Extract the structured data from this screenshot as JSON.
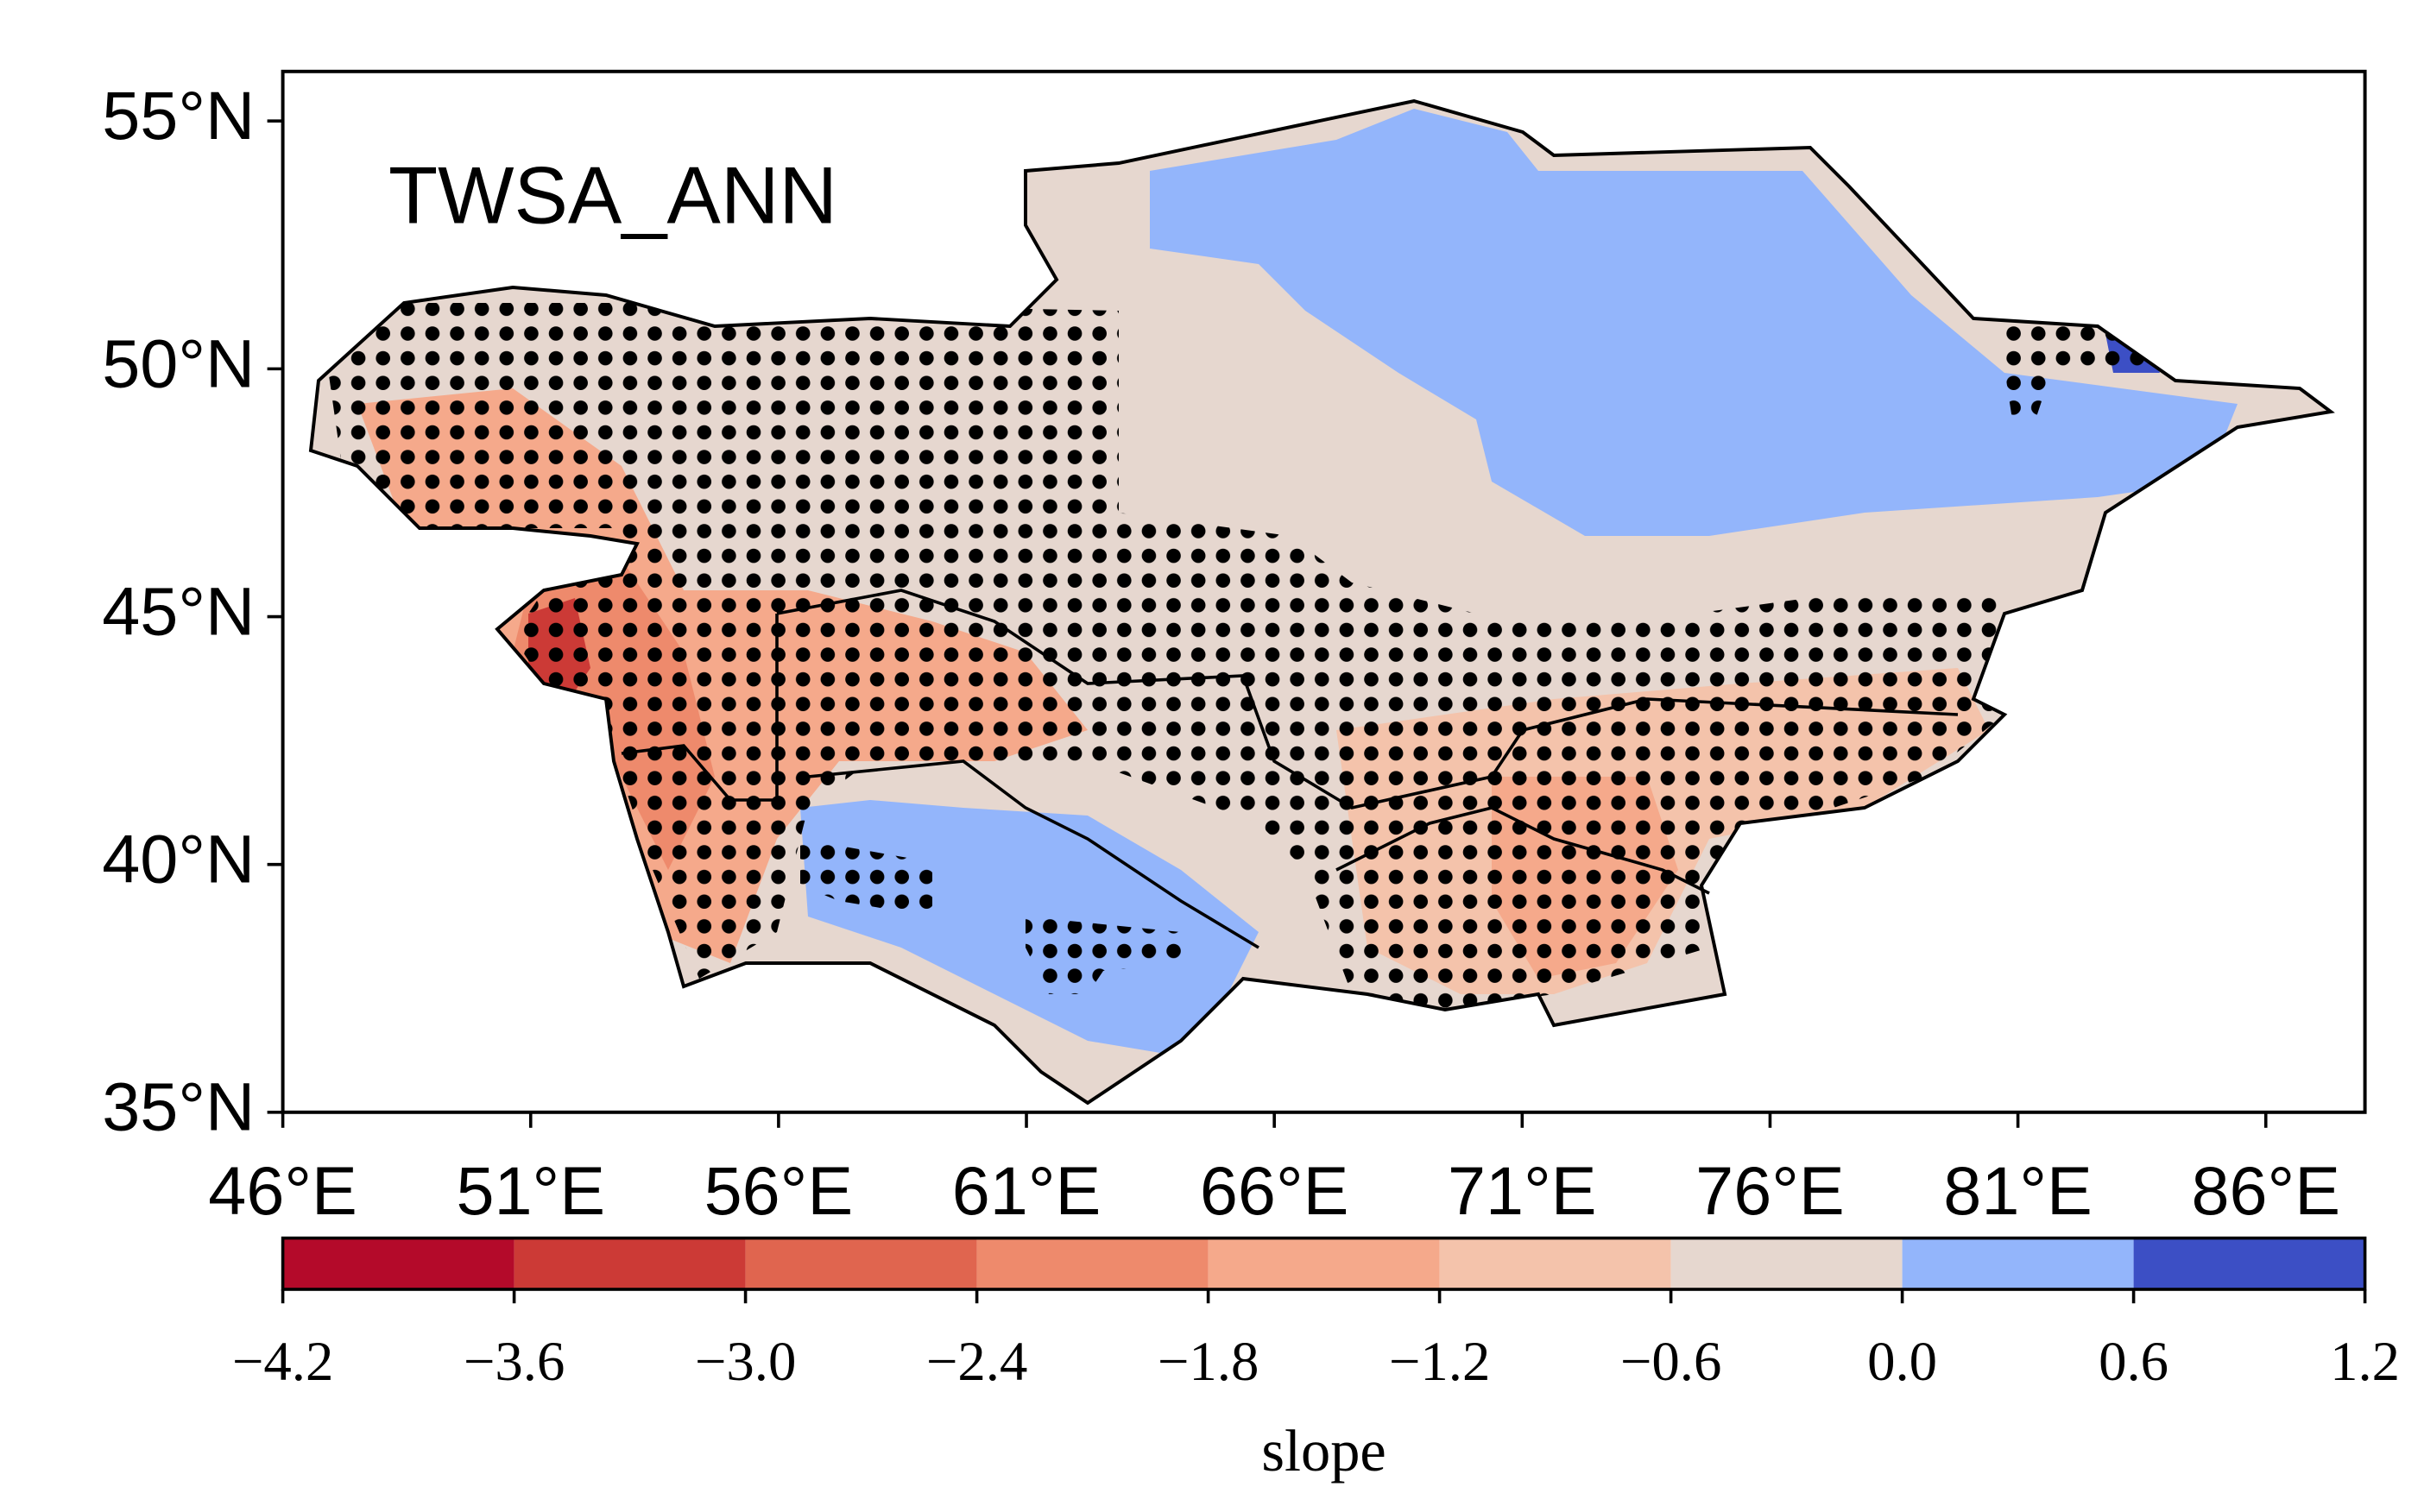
{
  "map": {
    "title": "TWSA_ANN",
    "xlim": [
      46,
      88
    ],
    "ylim": [
      35,
      56
    ],
    "xticks": [
      {
        "value": 46,
        "label": "46°E"
      },
      {
        "value": 51,
        "label": "51°E"
      },
      {
        "value": 56,
        "label": "56°E"
      },
      {
        "value": 61,
        "label": "61°E"
      },
      {
        "value": 66,
        "label": "66°E"
      },
      {
        "value": 71,
        "label": "71°E"
      },
      {
        "value": 76,
        "label": "76°E"
      },
      {
        "value": 81,
        "label": "81°E"
      },
      {
        "value": 86,
        "label": "86°E"
      }
    ],
    "yticks": [
      {
        "value": 35,
        "label": "35°N"
      },
      {
        "value": 40,
        "label": "40°N"
      },
      {
        "value": 45,
        "label": "45°N"
      },
      {
        "value": 50,
        "label": "50°N"
      },
      {
        "value": 55,
        "label": "55°N"
      }
    ]
  },
  "colorbar": {
    "label": "slope",
    "ticks": [
      {
        "value": -4.2,
        "label": "−4.2"
      },
      {
        "value": -3.6,
        "label": "−3.6"
      },
      {
        "value": -3.0,
        "label": "−3.0"
      },
      {
        "value": -2.4,
        "label": "−2.4"
      },
      {
        "value": -1.8,
        "label": "−1.8"
      },
      {
        "value": -1.2,
        "label": "−1.2"
      },
      {
        "value": -0.6,
        "label": "−0.6"
      },
      {
        "value": 0,
        "label": "0.0"
      },
      0.6,
      1.2
    ],
    "colors": [
      "#b40a2a",
      "#cc3a36",
      "#e0654f",
      "#ee8a6c",
      "#f5a98b",
      "#f4c3ab",
      "#e6d7cf",
      "#93b5fb",
      "#3c4fc5"
    ]
  }
}
